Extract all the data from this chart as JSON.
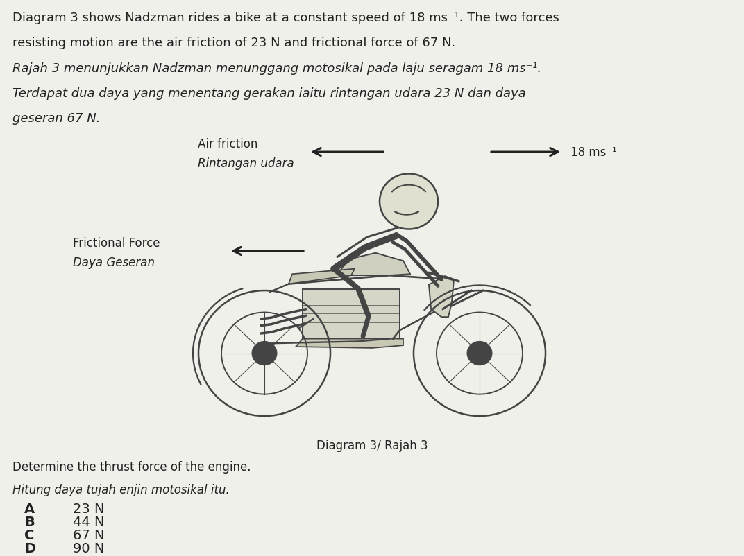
{
  "background_color": "#f0f0eb",
  "title_line1": "Diagram 3 shows Nadzman rides a bike at a constant speed of 18 ms⁻¹. The two forces",
  "title_line2": "resisting motion are the air friction of 23 N and frictional force of 67 N.",
  "title_line3_italic": "Rajah 3 menunjukkan Nadzman menunggang motosikal pada laju seragam 18 ms⁻¹.",
  "title_line4_italic": "Terdapat dua daya yang menentang gerakan iaitu rintangan udara 23 N dan daya",
  "title_line5_italic": "geseran 67 N.",
  "air_friction_label1": "Air friction",
  "air_friction_label2": "Rintangan udara",
  "frictional_force_label1": "Frictional Force",
  "frictional_force_label2": "Daya Geseran",
  "speed_label": "18 ms⁻¹",
  "diagram_label": "Diagram 3/ Rajah 3",
  "question_line1": "Determine the thrust force of the engine.",
  "question_line2_italic": "Hitung daya tujah enjin motosikal itu.",
  "options": [
    {
      "letter": "A",
      "text": "23 N"
    },
    {
      "letter": "B",
      "text": "44 N"
    },
    {
      "letter": "C",
      "text": "67 N"
    },
    {
      "letter": "D",
      "text": "90 N"
    }
  ],
  "text_color": "#222222",
  "arrow_color": "#222222",
  "line_color": "#444444",
  "font_size_body": 13,
  "font_size_labels": 12,
  "font_size_options": 14
}
